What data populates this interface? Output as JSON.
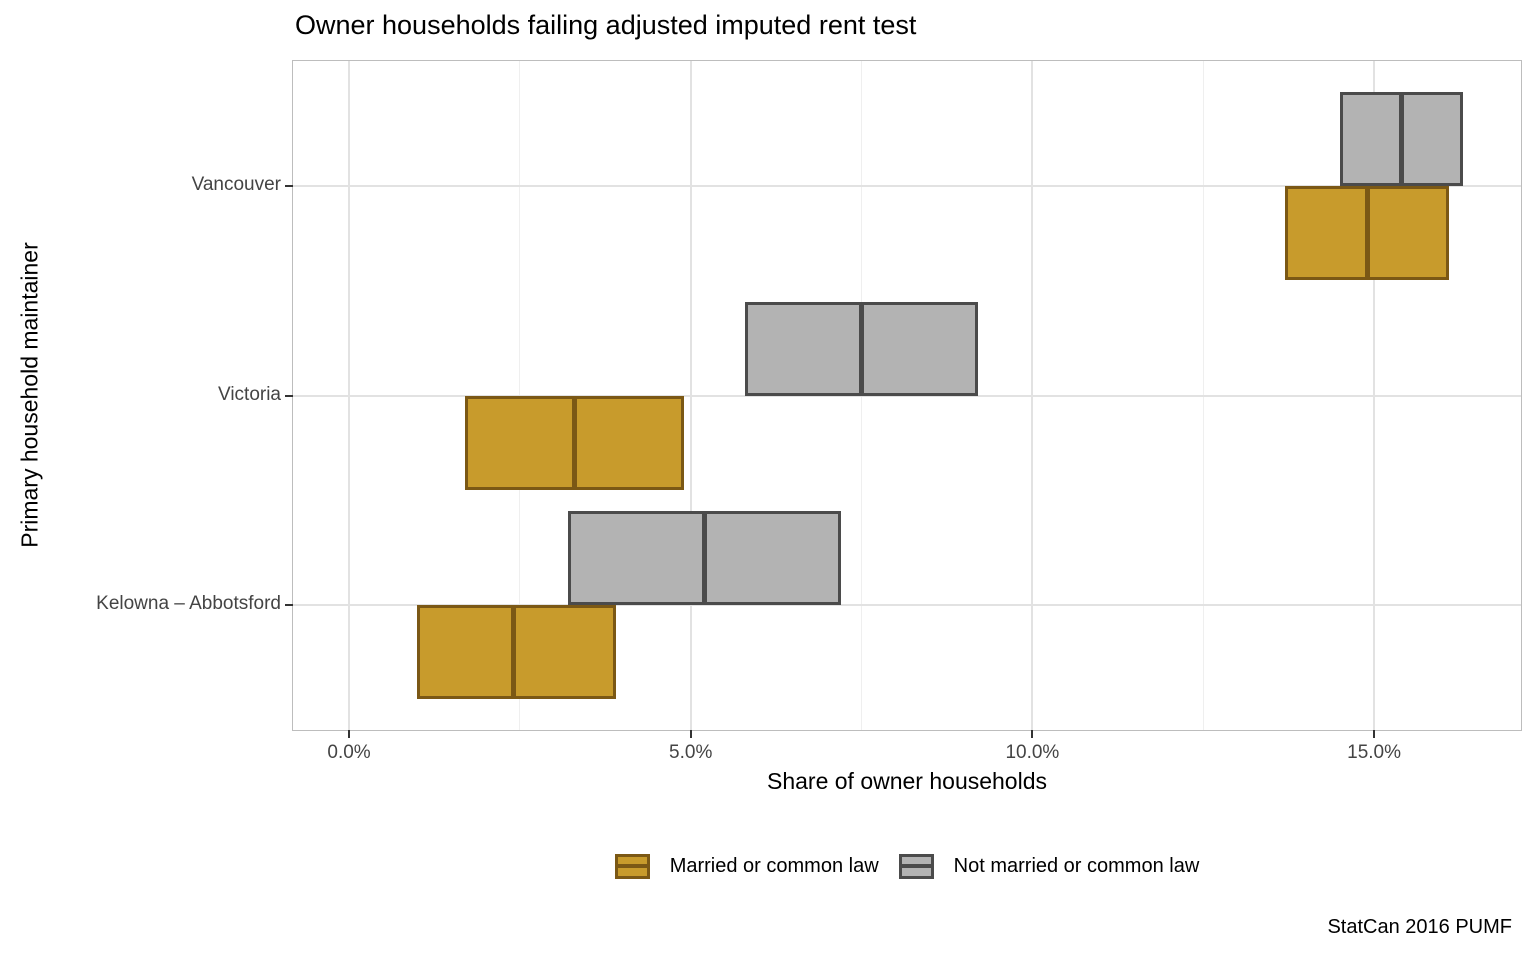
{
  "page": {
    "title": "Owner households failing adjusted imputed rent test",
    "caption": "StatCan 2016 PUMF"
  },
  "chart_data": {
    "type": "crossbar",
    "orientation": "horizontal",
    "title": "Owner households failing adjusted imputed rent test",
    "xlabel": "Share of owner households",
    "ylabel": "Primary household maintainer",
    "categories": [
      "Vancouver",
      "Victoria",
      "Kelowna – Abbotsford"
    ],
    "x_axis": {
      "unit": "percent",
      "tick_labels": [
        "0.0%",
        "5.0%",
        "10.0%",
        "15.0%"
      ],
      "tick_values": [
        0,
        5,
        10,
        15
      ],
      "minor_tick_values": [
        2.5,
        7.5,
        12.5
      ],
      "range": [
        -0.82,
        17.15
      ]
    },
    "grid": true,
    "legend_position": "bottom",
    "series": [
      {
        "name": "Married or common law",
        "dodge": "below",
        "fill": "#c89b2c",
        "stroke": "#7b5815",
        "values": [
          {
            "category": "Vancouver",
            "min": 13.7,
            "mid": 14.9,
            "max": 16.1
          },
          {
            "category": "Victoria",
            "min": 1.7,
            "mid": 3.3,
            "max": 4.9
          },
          {
            "category": "Kelowna – Abbotsford",
            "min": 1.0,
            "mid": 2.4,
            "max": 3.9
          }
        ]
      },
      {
        "name": "Not married or common law",
        "dodge": "above",
        "fill": "#b3b3b3",
        "stroke": "#4b4b4b",
        "values": [
          {
            "category": "Vancouver",
            "min": 14.5,
            "mid": 15.4,
            "max": 16.3
          },
          {
            "category": "Victoria",
            "min": 5.8,
            "mid": 7.5,
            "max": 9.2
          },
          {
            "category": "Kelowna – Abbotsford",
            "min": 3.2,
            "mid": 5.2,
            "max": 7.2
          }
        ]
      }
    ]
  }
}
